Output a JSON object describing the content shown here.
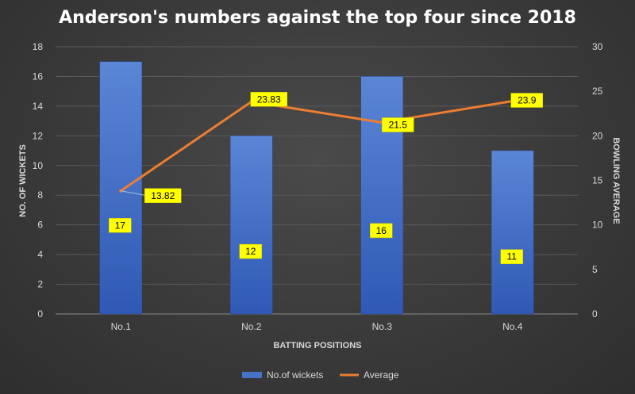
{
  "chart_data": {
    "type": "bar",
    "title": "Anderson's numbers against the top four since 2018",
    "xlabel": "BATTING POSITIONS",
    "ylabel": "NO. OF WICKETS",
    "y2label": "BOWLING AVERAGE",
    "categories": [
      "No.1",
      "No.2",
      "No.3",
      "No.4"
    ],
    "ylim": [
      0,
      18
    ],
    "y2lim": [
      0,
      30
    ],
    "yticks": [
      "0",
      "2",
      "4",
      "6",
      "8",
      "10",
      "12",
      "14",
      "16",
      "18"
    ],
    "y2ticks": [
      "0",
      "5",
      "10",
      "15",
      "20",
      "25",
      "30"
    ],
    "series": [
      {
        "name": "No.of wickets",
        "type": "bar",
        "axis": "left",
        "values": [
          17,
          12,
          16,
          11
        ],
        "labels": [
          "17",
          "12",
          "16",
          "11"
        ],
        "color": "#4472c4"
      },
      {
        "name": "Average",
        "type": "line",
        "axis": "right",
        "values": [
          13.82,
          23.83,
          21.5,
          23.9
        ],
        "labels": [
          "13.82",
          "23.83",
          "21.5",
          "23.9"
        ],
        "color": "#ed7d31"
      }
    ],
    "grid": true,
    "legend": "bottom",
    "label_box_color": "#ffff00"
  }
}
